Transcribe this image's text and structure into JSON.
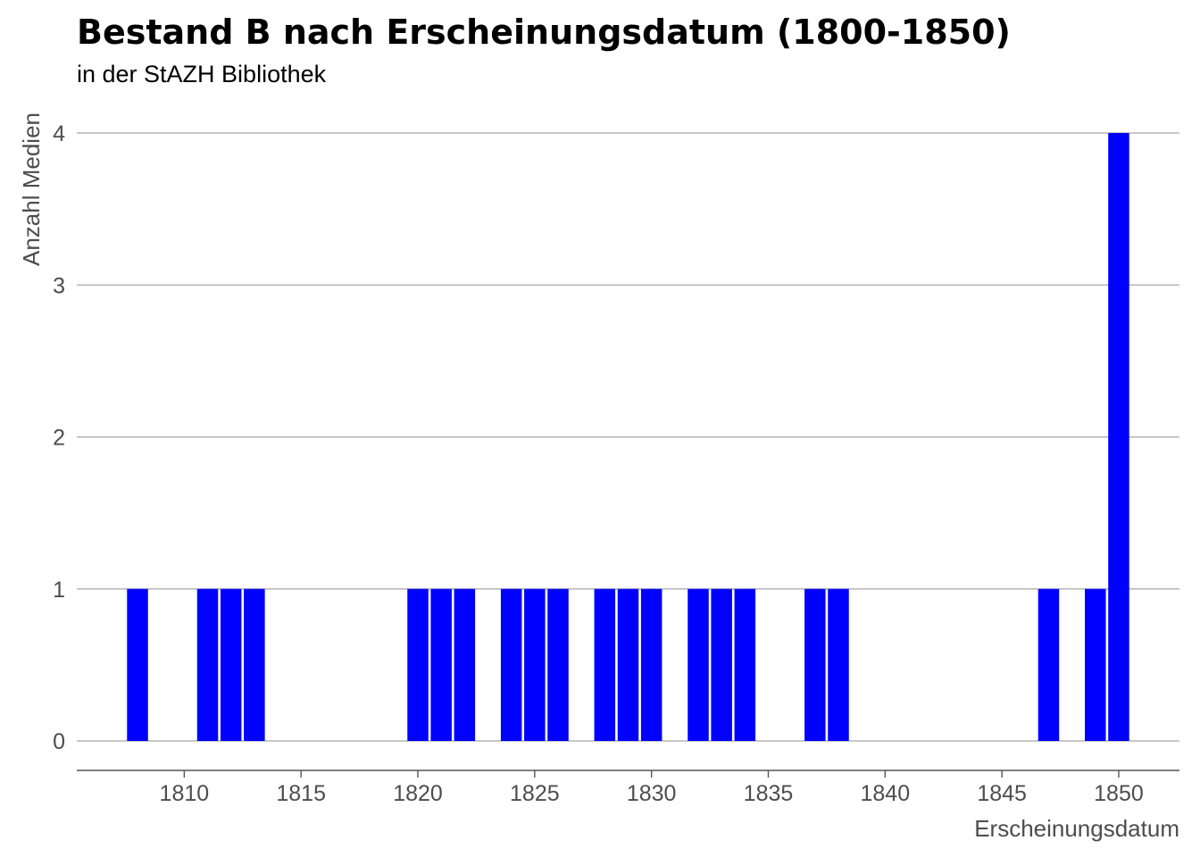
{
  "title": "Bestand B nach Erscheinungsdatum (1800-1850)",
  "subtitle": "in der StAZH Bibliothek",
  "chart_data": {
    "type": "bar",
    "title": "Bestand B nach Erscheinungsdatum (1800-1850)",
    "subtitle": "in der StAZH Bibliothek",
    "xlabel": "Erscheinungsdatum",
    "ylabel": "Anzahl Medien",
    "bar_color": "#0000ff",
    "grid": "horizontal",
    "xlim": [
      1805.4,
      1852.6
    ],
    "ylim": [
      0,
      4
    ],
    "x_ticks": [
      1810,
      1815,
      1820,
      1825,
      1830,
      1835,
      1840,
      1845,
      1850
    ],
    "y_ticks": [
      0,
      1,
      2,
      3,
      4
    ],
    "x": [
      1808,
      1811,
      1812,
      1813,
      1820,
      1821,
      1822,
      1824,
      1825,
      1826,
      1828,
      1829,
      1830,
      1832,
      1833,
      1834,
      1837,
      1838,
      1847,
      1849,
      1850
    ],
    "values": [
      1,
      1,
      1,
      1,
      1,
      1,
      1,
      1,
      1,
      1,
      1,
      1,
      1,
      1,
      1,
      1,
      1,
      1,
      1,
      1,
      4
    ]
  }
}
